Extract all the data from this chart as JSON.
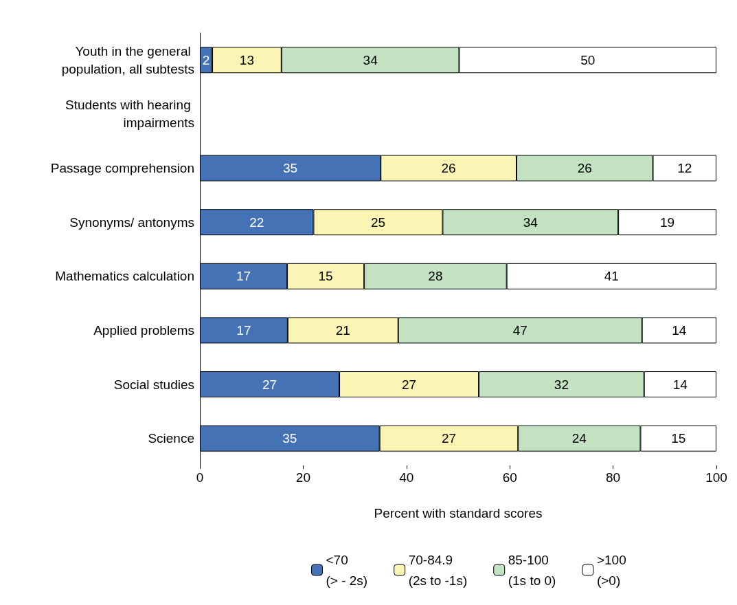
{
  "chart_data": {
    "type": "bar",
    "orientation": "horizontal",
    "stacked": true,
    "grid": false,
    "legend": "bottom",
    "xlabel": "Percent with standard scores",
    "categories": [
      "Youth in the general population, all subtests",
      "Students with hearing impairments",
      "Passage comprehension",
      "Synonyms/ antonyms",
      "Mathematics calculation",
      "Applied problems",
      "Social studies",
      "Science"
    ],
    "xlim": [
      0,
      100
    ],
    "xticks": [
      0,
      20,
      40,
      60,
      80,
      100
    ],
    "series": [
      {
        "name": "<70\n(> - 2s)",
        "color": "#4472b4",
        "values": [
          2.4,
          null,
          35,
          22,
          16.9,
          17,
          27,
          34.8
        ],
        "value_labels": [
          "2",
          null,
          "35",
          "22",
          "17",
          "17",
          "27",
          "35"
        ]
      },
      {
        "name": "70-84.9\n(2s to -1s)",
        "color": "#fbf5b5",
        "values": [
          13.4,
          null,
          26.3,
          25,
          14.9,
          21.4,
          27,
          26.8
        ],
        "value_labels": [
          "13",
          null,
          "26",
          "25",
          "15",
          "21",
          "27",
          "27"
        ]
      },
      {
        "name": "85-100\n(1s to 0)",
        "color": "#c2e2c2",
        "values": [
          34.4,
          null,
          26.4,
          34,
          27.6,
          47.2,
          32,
          23.7
        ],
        "value_labels": [
          "34",
          null,
          "26",
          "34",
          "28",
          "47",
          "32",
          "24"
        ]
      },
      {
        "name": ">100\n(>0)",
        "color": "#ffffff",
        "values": [
          49.8,
          null,
          12.3,
          19,
          40.6,
          14.4,
          14,
          14.7
        ],
        "value_labels": [
          "50",
          null,
          "12",
          "19",
          "41",
          "14",
          "14",
          "15"
        ]
      }
    ]
  }
}
